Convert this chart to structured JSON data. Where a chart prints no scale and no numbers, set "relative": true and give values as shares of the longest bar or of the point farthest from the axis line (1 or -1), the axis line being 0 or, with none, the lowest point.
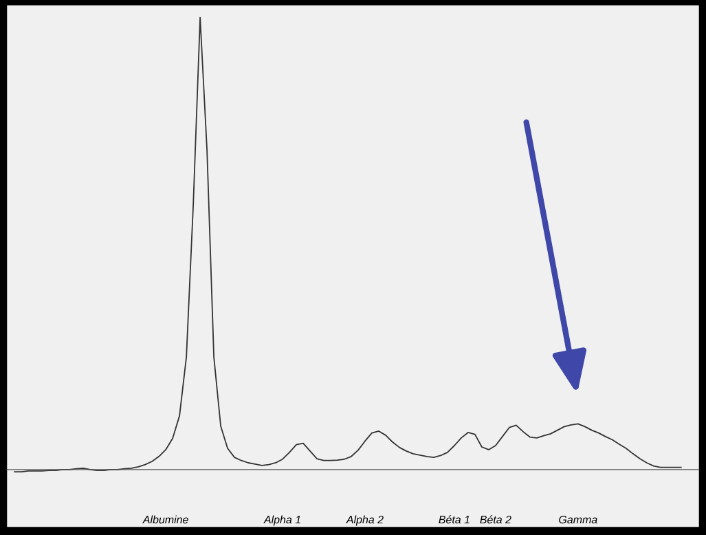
{
  "chart_data": {
    "type": "line",
    "relative": true,
    "grid": false,
    "marker": "none",
    "line_style": "solid",
    "tick_labels": "x",
    "categories": [
      null,
      null,
      null,
      null,
      null,
      null,
      null,
      null,
      null,
      null,
      null,
      null,
      null,
      null,
      null,
      null,
      null,
      null,
      null,
      null,
      null,
      null,
      "Albumine",
      null,
      null,
      null,
      null,
      null,
      null,
      null,
      null,
      null,
      null,
      null,
      null,
      null,
      null,
      null,
      null,
      "Alpha 1",
      null,
      null,
      null,
      null,
      null,
      null,
      null,
      null,
      null,
      null,
      null,
      "Alpha 2",
      null,
      null,
      null,
      null,
      null,
      null,
      null,
      null,
      null,
      null,
      null,
      null,
      "Béta 1",
      null,
      null,
      null,
      null,
      null,
      "Béta 2",
      null,
      null,
      null,
      null,
      null,
      null,
      null,
      null,
      null,
      null,
      null,
      "Gamma",
      null,
      null,
      null,
      null,
      null,
      null,
      null,
      null,
      null,
      null,
      null,
      null,
      null,
      null,
      null
    ],
    "series": [
      {
        "color": "#333333",
        "values": [
          -0.005,
          -0.005,
          -0.003,
          -0.003,
          -0.003,
          -0.002,
          -0.002,
          0,
          0,
          0.002,
          0.003,
          0,
          -0.002,
          -0.002,
          0,
          0,
          0.002,
          0.003,
          0.006,
          0.011,
          0.018,
          0.029,
          0.044,
          0.069,
          0.119,
          0.249,
          0.585,
          1,
          0.707,
          0.249,
          0.096,
          0.047,
          0.027,
          0.02,
          0.015,
          0.012,
          0.009,
          0.011,
          0.015,
          0.023,
          0.038,
          0.055,
          0.058,
          0.041,
          0.024,
          0.02,
          0.02,
          0.021,
          0.023,
          0.029,
          0.043,
          0.063,
          0.081,
          0.085,
          0.076,
          0.061,
          0.049,
          0.041,
          0.035,
          0.032,
          0.029,
          0.027,
          0.031,
          0.038,
          0.053,
          0.07,
          0.082,
          0.078,
          0.05,
          0.044,
          0.053,
          0.073,
          0.093,
          0.098,
          0.084,
          0.072,
          0.07,
          0.075,
          0.079,
          0.087,
          0.095,
          0.099,
          0.101,
          0.095,
          0.087,
          0.081,
          0.073,
          0.066,
          0.056,
          0.047,
          0.035,
          0.024,
          0.015,
          0.008,
          0.005,
          0.005,
          0.005,
          0.005
        ]
      }
    ]
  }
}
